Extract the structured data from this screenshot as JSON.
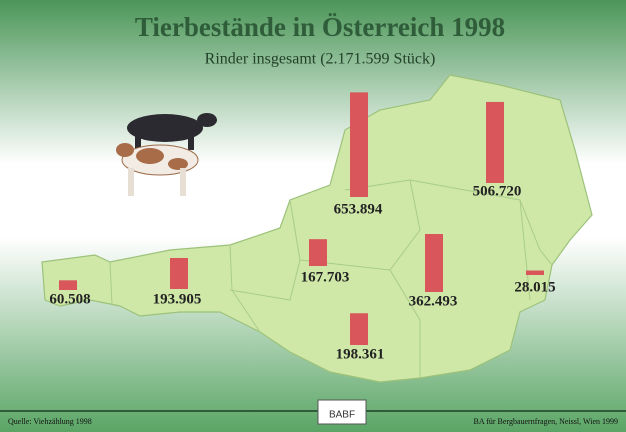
{
  "chart_data": {
    "type": "bar",
    "title": "Tierbestände in Österreich 1998",
    "subtitle": "Rinder insgesamt (2.171.599 Stück)",
    "categories": [
      null,
      null,
      null,
      null,
      null,
      null,
      null,
      null
    ],
    "values": [
      60508,
      193905,
      198361,
      167703,
      653894,
      362493,
      506720,
      28015
    ],
    "value_labels": [
      "60.508",
      "193.905",
      "198.361",
      "167.703",
      "653.894",
      "362.493",
      "506.720",
      "28.015"
    ],
    "color": "#d9565a"
  },
  "footer": {
    "source": "Quelle: Viehzählung 1998",
    "logo": "BABF",
    "credit": "BA für Bergbauernfragen, Neissl, Wien 1999"
  }
}
